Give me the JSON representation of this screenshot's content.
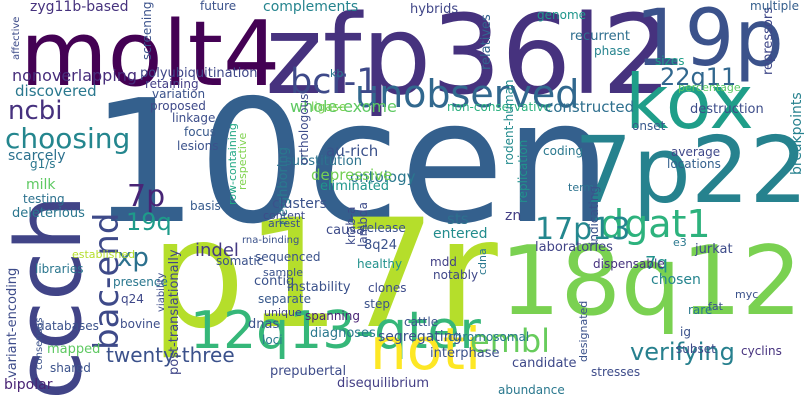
{
  "words": [
    {
      "id": "10cen",
      "text": "10cen",
      "color": "#34608d"
    },
    {
      "id": "p17r",
      "text": "p17r",
      "color": "#b5de2b"
    },
    {
      "id": "zfp36l2",
      "text": "zfp36l2",
      "color": "#46327e"
    },
    {
      "id": "molt4",
      "text": "molt4",
      "color": "#440154"
    },
    {
      "id": "19p",
      "text": "19p",
      "color": "#3b528b"
    },
    {
      "id": "ccch",
      "text": "ccch",
      "color": "#414487"
    },
    {
      "id": "18q12",
      "text": "18q12",
      "color": "#7ad151"
    },
    {
      "id": "7p22",
      "text": "7p22",
      "color": "#26828e"
    },
    {
      "id": "kox",
      "text": "kox",
      "color": "#1f9e89"
    },
    {
      "id": "12q13-qter",
      "text": "12q13-qter",
      "color": "#35b779"
    },
    {
      "id": "noti",
      "text": "noti",
      "color": "#fde725"
    },
    {
      "id": "unobserved",
      "text": "unobserved",
      "color": "#31688e"
    },
    {
      "id": "bcr-1",
      "text": "bcr-1",
      "color": "#3e4989"
    },
    {
      "id": "dgat1",
      "text": "dgat1",
      "color": "#2db27d"
    },
    {
      "id": "bac-end",
      "text": "bac-end",
      "color": "#3e4a89"
    },
    {
      "id": "17p13",
      "text": "17p13",
      "color": "#24878e"
    },
    {
      "id": "choosing",
      "text": "choosing",
      "color": "#24868e"
    },
    {
      "id": "embl",
      "text": "embl",
      "color": "#67cc5c"
    },
    {
      "id": "7p",
      "text": "7p",
      "color": "#482576"
    },
    {
      "id": "ncbi",
      "text": "ncbi",
      "color": "#46317e"
    },
    {
      "id": "22q11",
      "text": "22q11",
      "color": "#31678e"
    },
    {
      "id": "xp",
      "text": "xp",
      "color": "#2c718e"
    },
    {
      "id": "19q",
      "text": "19q",
      "color": "#1e9b8a"
    },
    {
      "id": "twenty-three",
      "text": "twenty-three",
      "color": "#3b518b"
    },
    {
      "id": "verifying",
      "text": "verifying",
      "color": "#27808e"
    },
    {
      "id": "indel",
      "text": "indel",
      "color": "#443983"
    },
    {
      "id": "7q",
      "text": "7q",
      "color": "#21918c"
    },
    {
      "id": "nonoverlapping",
      "text": "nonoverlapping",
      "color": "#472d7b"
    },
    {
      "id": "discovered",
      "text": "discovered",
      "color": "#2a788e"
    },
    {
      "id": "scarcely",
      "text": "scarcely",
      "color": "#2c718e"
    },
    {
      "id": "polyubiquitination",
      "text": "polyubiquitination",
      "color": "#3f4788"
    },
    {
      "id": "whole-exome",
      "text": "whole-exome",
      "color": "#5ec962"
    },
    {
      "id": "non-conservative",
      "text": "non-conservative",
      "color": "#2ab07f"
    },
    {
      "id": "constructed",
      "text": "constructed",
      "color": "#2e6f8e"
    },
    {
      "id": "zyg11b-based",
      "text": "zyg11b-based",
      "color": "#46327e"
    },
    {
      "id": "future",
      "text": "future",
      "color": "#3b528b"
    },
    {
      "id": "complements",
      "text": "complements",
      "color": "#25848e"
    },
    {
      "id": "hybrids",
      "text": "hybrids",
      "color": "#404688"
    },
    {
      "id": "relatives",
      "text": "relatives",
      "color": "#33638d"
    },
    {
      "id": "genome",
      "text": "genome",
      "color": "#1f968b"
    },
    {
      "id": "recurrent",
      "text": "recurrent",
      "color": "#2e6e8e"
    },
    {
      "id": "phase",
      "text": "phase",
      "color": "#25838e"
    },
    {
      "id": "repressors",
      "text": "repressors",
      "color": "#3f4788"
    },
    {
      "id": "multiple",
      "text": "multiple",
      "color": "#355f8d"
    },
    {
      "id": "sizes",
      "text": "sizes",
      "color": "#1f9f88"
    },
    {
      "id": "destruction",
      "text": "destruction",
      "color": "#3d4d8a"
    },
    {
      "id": "breakpoints",
      "text": "breakpoints",
      "color": "#26818e"
    },
    {
      "id": "percentage",
      "text": "percentage",
      "color": "#5ac864"
    },
    {
      "id": "onset",
      "text": "onset",
      "color": "#38598c"
    },
    {
      "id": "coding",
      "text": "coding",
      "color": "#2a788e"
    },
    {
      "id": "average",
      "text": "average",
      "color": "#3f4889"
    },
    {
      "id": "locations",
      "text": "locations",
      "color": "#34608d"
    },
    {
      "id": "ontology",
      "text": "ontology",
      "color": "#2a778e"
    },
    {
      "id": "rodent-human",
      "text": "rodent-human",
      "color": "#238a8d"
    },
    {
      "id": "replication",
      "text": "replication",
      "color": "#21918c"
    },
    {
      "id": "term",
      "text": "term",
      "color": "#2c728e"
    },
    {
      "id": "sts",
      "text": "sts",
      "color": "#2d708e"
    },
    {
      "id": "zn",
      "text": "zn",
      "color": "#433e85"
    },
    {
      "id": "entered",
      "text": "entered",
      "color": "#228c8d"
    },
    {
      "id": "depressive",
      "text": "depressive",
      "color": "#75d054"
    },
    {
      "id": "eliminated",
      "text": "eliminated",
      "color": "#1f968b"
    },
    {
      "id": "substitution",
      "text": "substitution",
      "color": "#2c738e"
    },
    {
      "id": "au-rich",
      "text": "au-rich",
      "color": "#3b528b"
    },
    {
      "id": "orthologous",
      "text": "orthologous",
      "color": "#3e4c8a"
    },
    {
      "id": "neighboring",
      "text": "neighboring",
      "color": "#2a788e"
    },
    {
      "id": "row-containing",
      "text": "row-containing",
      "color": "#22a785"
    },
    {
      "id": "respective",
      "text": "respective",
      "color": "#7fd34e"
    },
    {
      "id": "clusters",
      "text": "clusters",
      "color": "#3b528b"
    },
    {
      "id": "basis",
      "text": "basis",
      "color": "#375b8d"
    },
    {
      "id": "linkage",
      "text": "linkage",
      "color": "#3d4e8a"
    },
    {
      "id": "focus",
      "text": "focus",
      "color": "#38598c"
    },
    {
      "id": "lesions",
      "text": "lesions",
      "color": "#3b528b"
    },
    {
      "id": "proposed",
      "text": "proposed",
      "color": "#3e4989"
    },
    {
      "id": "variation",
      "text": "variation",
      "color": "#3b528b"
    },
    {
      "id": "retaining",
      "text": "retaining",
      "color": "#433e85"
    },
    {
      "id": "milk",
      "text": "milk",
      "color": "#5ec962"
    },
    {
      "id": "testing",
      "text": "testing",
      "color": "#2c718e"
    },
    {
      "id": "deleterious",
      "text": "deleterious",
      "color": "#2a768e"
    },
    {
      "id": "g1/s",
      "text": "g1/s",
      "color": "#2a778e"
    },
    {
      "id": "ligase",
      "text": "ligase",
      "color": "#7ad151"
    },
    {
      "id": "kb",
      "text": "kb",
      "color": "#2a788e"
    },
    {
      "id": "established",
      "text": "established",
      "color": "#b5de2b"
    },
    {
      "id": "libraries",
      "text": "libraries",
      "color": "#2a768e"
    },
    {
      "id": "variant-encoding",
      "text": "variant-encoding",
      "color": "#3e4c8a"
    },
    {
      "id": "bipolar",
      "text": "bipolar",
      "color": "#482374"
    },
    {
      "id": "databases",
      "text": "databases",
      "color": "#3b528b"
    },
    {
      "id": "mapped",
      "text": "mapped",
      "color": "#5ec962"
    },
    {
      "id": "shared",
      "text": "shared",
      "color": "#3b528b"
    },
    {
      "id": "bovine",
      "text": "bovine",
      "color": "#3d4e8a"
    },
    {
      "id": "q24",
      "text": "q24",
      "color": "#3f4889"
    },
    {
      "id": "post-translationally",
      "text": "post-translationally",
      "color": "#404688"
    },
    {
      "id": "presence",
      "text": "presence",
      "color": "#2a778e"
    },
    {
      "id": "contig",
      "text": "contig",
      "color": "#3b528b"
    },
    {
      "id": "separate",
      "text": "separate",
      "color": "#38598c"
    },
    {
      "id": "unique",
      "text": "unique",
      "color": "#424086"
    },
    {
      "id": "dnas",
      "text": "dnas",
      "color": "#3b528b"
    },
    {
      "id": "loci",
      "text": "loci",
      "color": "#2a788e"
    },
    {
      "id": "diagnoses",
      "text": "diagnoses",
      "color": "#2a788e"
    },
    {
      "id": "segregating",
      "text": "segregating",
      "color": "#3b528b"
    },
    {
      "id": "cattle",
      "text": "cattle",
      "color": "#3b528b"
    },
    {
      "id": "mdd",
      "text": "mdd",
      "color": "#424086"
    },
    {
      "id": "notably",
      "text": "notably",
      "color": "#3f4788"
    },
    {
      "id": "laboratories",
      "text": "laboratories",
      "color": "#414487"
    },
    {
      "id": "dispensable",
      "text": "dispensable",
      "color": "#46327e"
    },
    {
      "id": "jurkat",
      "text": "jurkat",
      "color": "#3e4c8a"
    },
    {
      "id": "chosen",
      "text": "chosen",
      "color": "#25848e"
    },
    {
      "id": "rare",
      "text": "rare",
      "color": "#2a788e"
    },
    {
      "id": "ig",
      "text": "ig",
      "color": "#3b528b"
    },
    {
      "id": "cyclins",
      "text": "cyclins",
      "color": "#46327e"
    },
    {
      "id": "stresses",
      "text": "stresses",
      "color": "#3e4c8a"
    },
    {
      "id": "candidate",
      "text": "candidate",
      "color": "#3e4989"
    },
    {
      "id": "abundance",
      "text": "abundance",
      "color": "#2a788e"
    },
    {
      "id": "interphase",
      "text": "interphase",
      "color": "#3b528b"
    },
    {
      "id": "chromosomal",
      "text": "chromosomal",
      "color": "#2a788e"
    },
    {
      "id": "disequilibrium",
      "text": "disequilibrium",
      "color": "#433e85"
    },
    {
      "id": "prepubertal",
      "text": "prepubertal",
      "color": "#3e4c8a"
    },
    {
      "id": "spanning",
      "text": "spanning",
      "color": "#482374"
    },
    {
      "id": "instability",
      "text": "instability",
      "color": "#3b528b"
    },
    {
      "id": "krab-a",
      "text": "krab-a",
      "color": "#3e4c8a"
    },
    {
      "id": "lambda",
      "text": "lambda",
      "color": "#3e4c8a"
    },
    {
      "id": "8q24",
      "text": "8q24",
      "color": "#3b528b"
    },
    {
      "id": "healthy",
      "text": "healthy",
      "color": "#21918c"
    },
    {
      "id": "clones",
      "text": "clones",
      "color": "#3e4c8a"
    },
    {
      "id": "step",
      "text": "step",
      "color": "#3b528b"
    },
    {
      "id": "release",
      "text": "release",
      "color": "#3b528b"
    },
    {
      "id": "sequenced",
      "text": "sequenced",
      "color": "#3b528b"
    },
    {
      "id": "somatic",
      "text": "somatic",
      "color": "#3b528b"
    },
    {
      "id": "arrest",
      "text": "arrest",
      "color": "#3b528b"
    },
    {
      "id": "cdna",
      "text": "cdna",
      "color": "#2a788e"
    },
    {
      "id": "indicating",
      "text": "indicating",
      "color": "#3b528b"
    },
    {
      "id": "designated",
      "text": "designated",
      "color": "#3b528b"
    },
    {
      "id": "subset",
      "text": "subset",
      "color": "#3e4c8a"
    },
    {
      "id": "fat",
      "text": "fat",
      "color": "#3b528b"
    },
    {
      "id": "myc",
      "text": "myc",
      "color": "#3b528b"
    },
    {
      "id": "e3",
      "text": "e3",
      "color": "#2a788e"
    },
    {
      "id": "viability",
      "text": "viability",
      "color": "#3e4c8a"
    },
    {
      "id": "sample",
      "text": "sample",
      "color": "#3b528b"
    },
    {
      "id": "screening",
      "text": "screening",
      "color": "#3b528b"
    },
    {
      "id": "affective",
      "text": "affective",
      "color": "#3e4c8a"
    },
    {
      "id": "consensus",
      "text": "consensus",
      "color": "#3b528b"
    },
    {
      "id": "content",
      "text": "content",
      "color": "#3e4c8a"
    },
    {
      "id": "rna-binding",
      "text": "rna-binding",
      "color": "#3b528b"
    },
    {
      "id": "causal",
      "text": "causal",
      "color": "#3e4c8a"
    }
  ]
}
